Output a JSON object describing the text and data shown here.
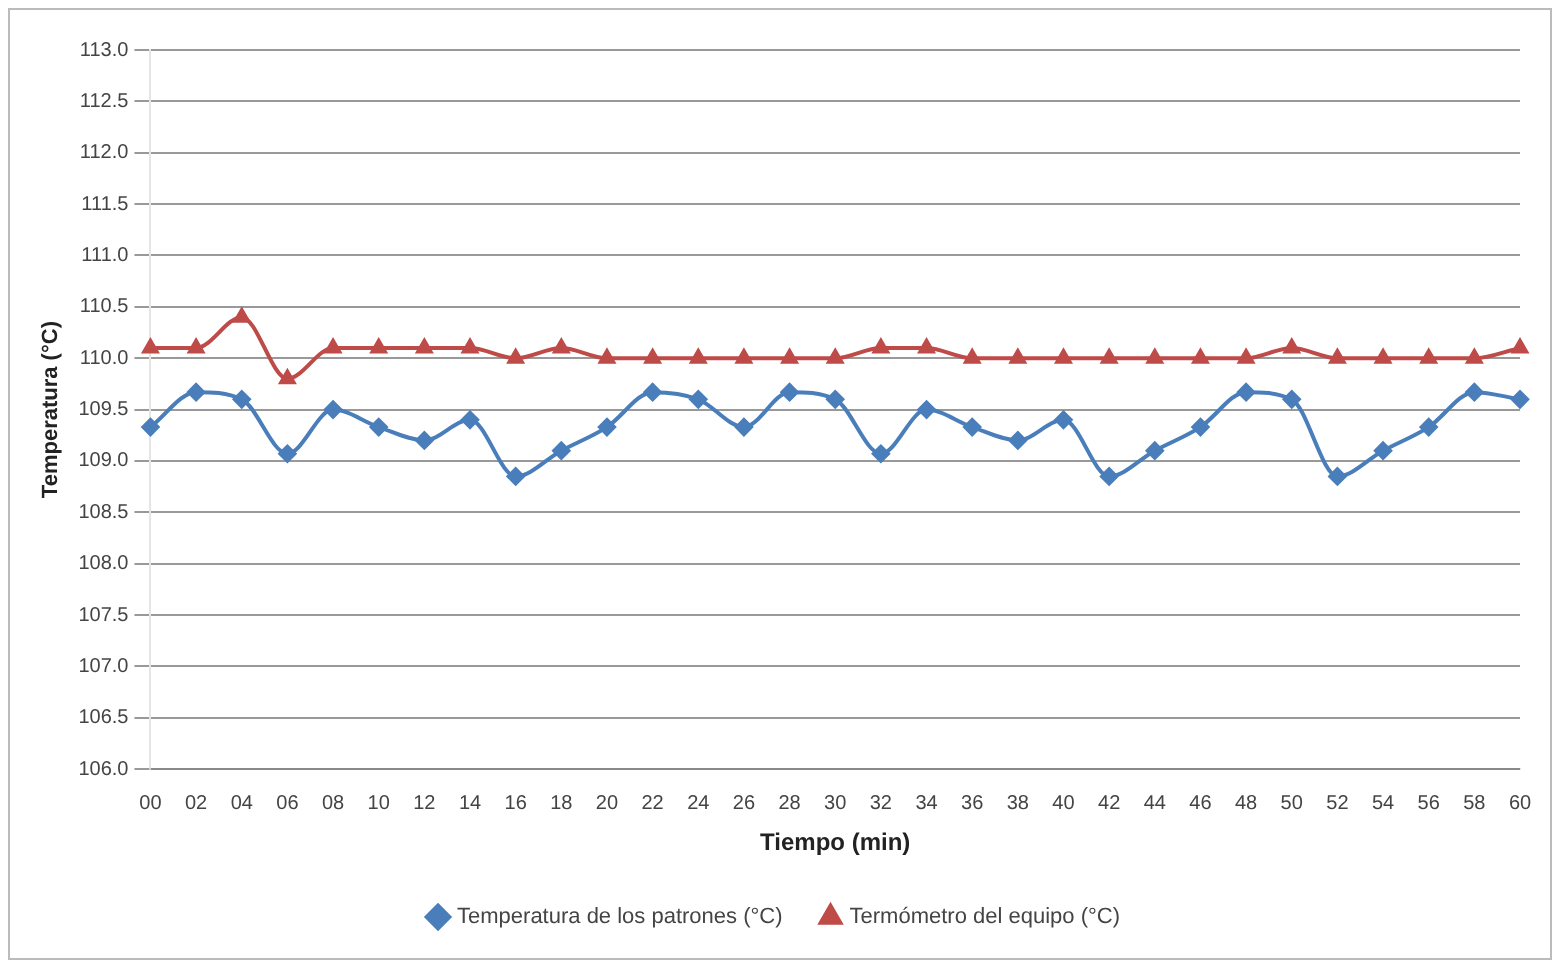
{
  "chart_data": {
    "type": "line",
    "xlabel": "Tiempo (min)",
    "ylabel": "Temperatura (°C)",
    "categories": [
      "00",
      "02",
      "04",
      "06",
      "08",
      "10",
      "12",
      "14",
      "16",
      "18",
      "20",
      "22",
      "24",
      "26",
      "28",
      "30",
      "32",
      "34",
      "36",
      "38",
      "40",
      "42",
      "44",
      "46",
      "48",
      "50",
      "52",
      "54",
      "56",
      "58",
      "60"
    ],
    "series": [
      {
        "name": "Temperatura de los patrones (°C)",
        "color": "#4a7ebb",
        "marker": "diamond",
        "values": [
          109.33,
          109.67,
          109.6,
          109.07,
          109.5,
          109.33,
          109.2,
          109.4,
          108.85,
          109.1,
          109.33,
          109.67,
          109.6,
          109.33,
          109.67,
          109.6,
          109.07,
          109.5,
          109.33,
          109.2,
          109.4,
          108.85,
          109.1,
          109.33,
          109.67,
          109.6,
          108.85,
          109.1,
          109.33,
          109.67,
          109.6
        ]
      },
      {
        "name": "Termómetro del equipo (°C)",
        "color": "#be4b48",
        "marker": "triangle",
        "values": [
          110.1,
          110.1,
          110.4,
          109.8,
          110.1,
          110.1,
          110.1,
          110.1,
          110.0,
          110.1,
          110.0,
          110.0,
          110.0,
          110.0,
          110.0,
          110.0,
          110.1,
          110.1,
          110.0,
          110.0,
          110.0,
          110.0,
          110.0,
          110.0,
          110.0,
          110.1,
          110.0,
          110.0,
          110.0,
          110.0,
          110.1
        ]
      }
    ],
    "ylim": [
      106,
      113
    ],
    "yticks": [
      {
        "value": 106,
        "label": "106.0"
      },
      {
        "value": 106.5,
        "label": "106.5"
      },
      {
        "value": 107,
        "label": "107.0"
      },
      {
        "value": 107.5,
        "label": "107.5"
      },
      {
        "value": 108,
        "label": "108.0"
      },
      {
        "value": 108.5,
        "label": "108.5"
      },
      {
        "value": 109,
        "label": "109.0"
      },
      {
        "value": 109.5,
        "label": "109.5"
      },
      {
        "value": 110,
        "label": "110.0"
      },
      {
        "value": 110.5,
        "label": "110.5"
      },
      {
        "value": 111,
        "label": "111.0"
      },
      {
        "value": 111.5,
        "label": "111.5"
      },
      {
        "value": 112,
        "label": "112.0"
      },
      {
        "value": 112.5,
        "label": "112.5"
      },
      {
        "value": 113,
        "label": "113.0"
      }
    ],
    "grid": "y",
    "legend": "bottom"
  }
}
